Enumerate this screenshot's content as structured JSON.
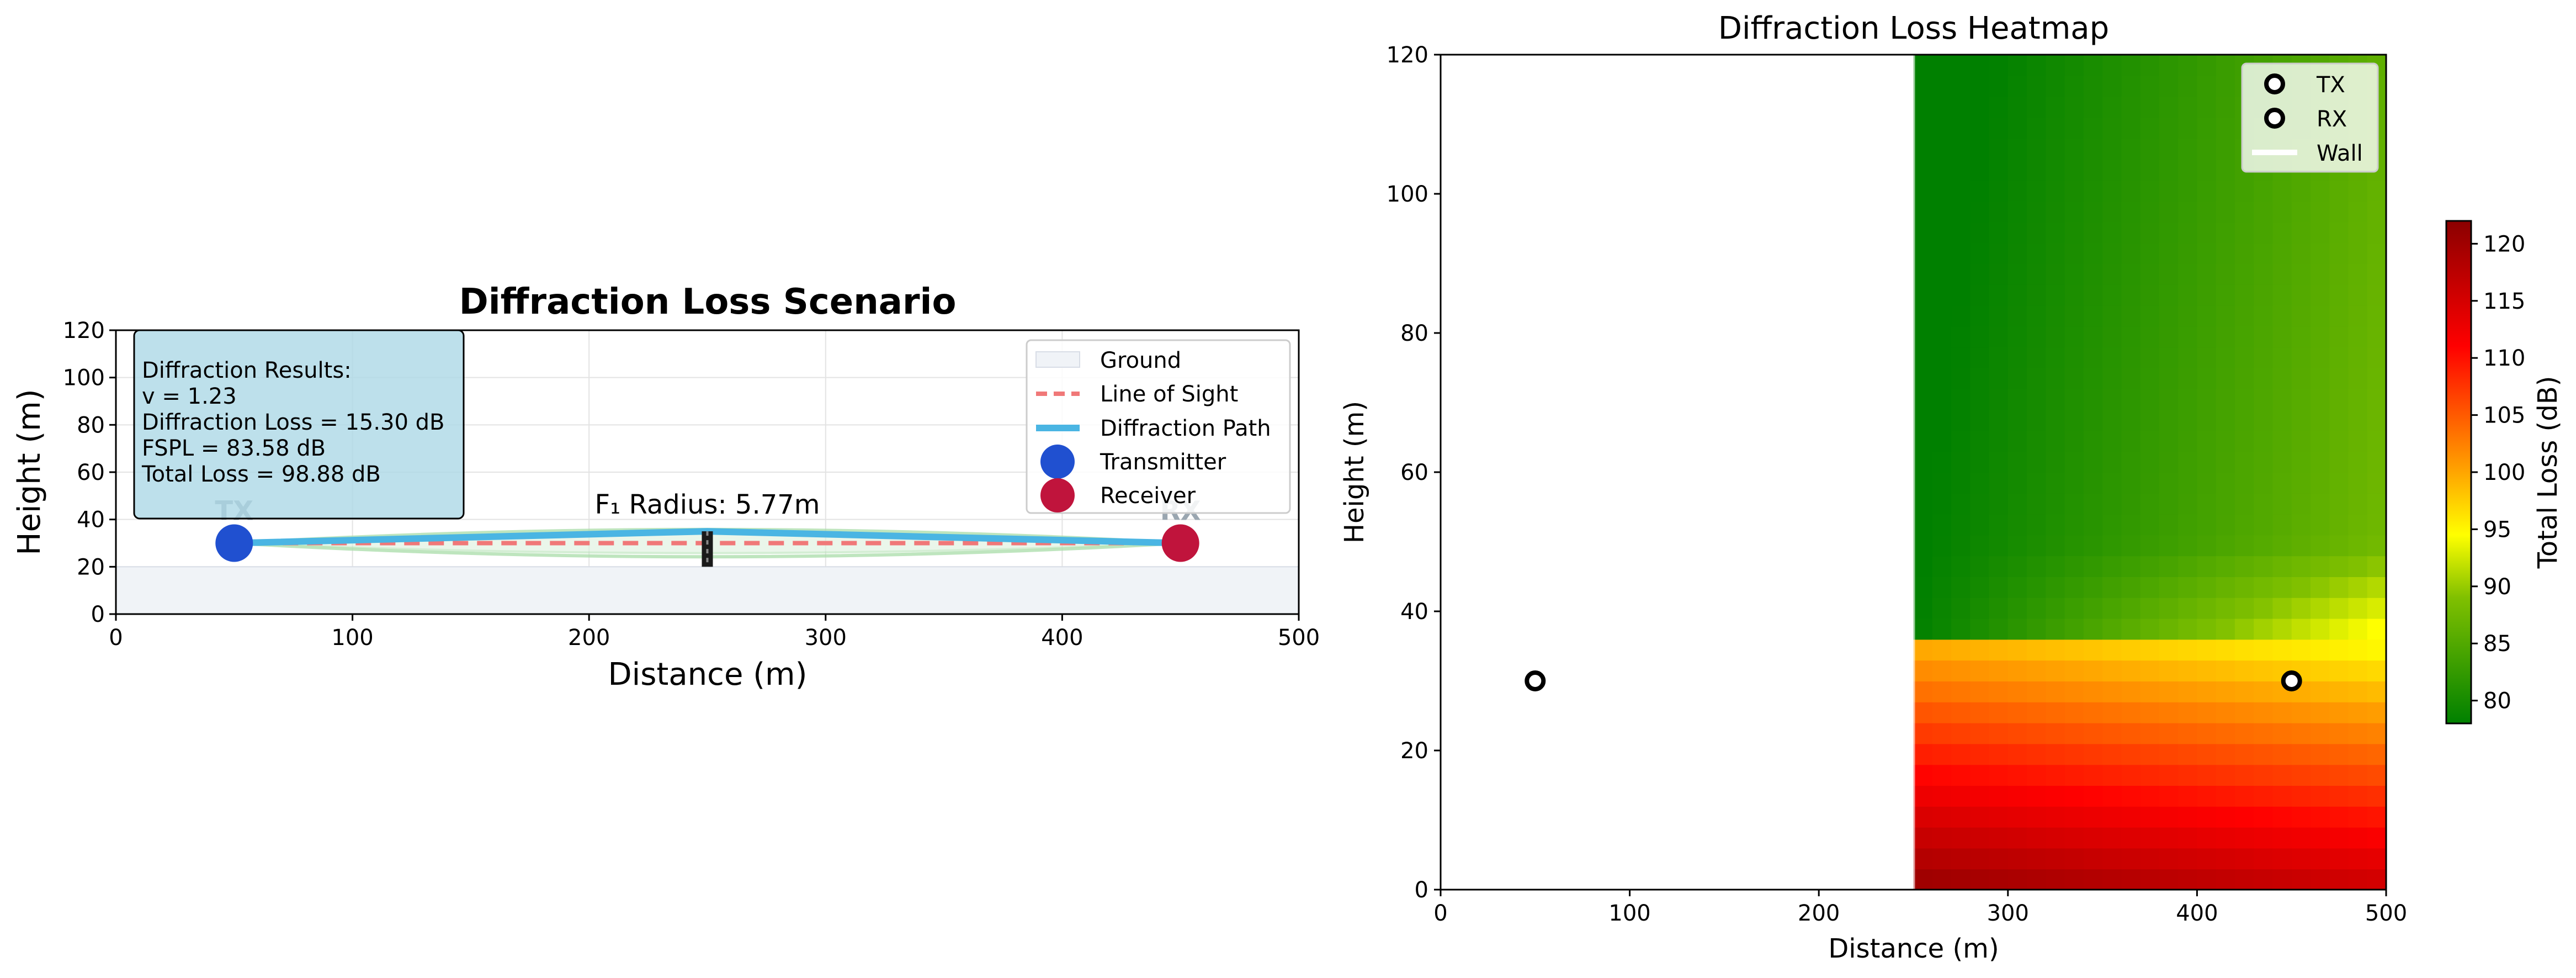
{
  "chart_data": [
    {
      "type": "line",
      "title": "Diffraction Loss Scenario",
      "xlabel": "Distance (m)",
      "ylabel": "Height (m)",
      "xlim": [
        0,
        500
      ],
      "ylim": [
        0,
        120
      ],
      "xticks": [
        0,
        100,
        200,
        300,
        400,
        500
      ],
      "yticks": [
        0,
        20,
        40,
        60,
        80,
        100,
        120
      ],
      "grid": true,
      "legend_position": "top-right",
      "ground_height": 20,
      "transmitter": {
        "x": 50,
        "y": 30,
        "label": "TX",
        "color": "#2050d0"
      },
      "receiver": {
        "x": 450,
        "y": 30,
        "label": "RX",
        "color": "#c0143c"
      },
      "obstacle": {
        "x": 250,
        "y_bottom": 20,
        "y_top": 35
      },
      "fresnel_radius_label": "F₁ Radius: 5.77m",
      "series": [
        {
          "name": "Ground",
          "color": "#f0f3f7"
        },
        {
          "name": "Line of Sight",
          "x": [
            50,
            450
          ],
          "y": [
            30,
            30
          ],
          "color": "#f07878"
        },
        {
          "name": "Diffraction Path",
          "x": [
            50,
            250,
            450
          ],
          "y": [
            30,
            35,
            30
          ],
          "color": "#4ab5e3"
        },
        {
          "name": "Transmitter",
          "color": "#2050d0"
        },
        {
          "name": "Receiver",
          "color": "#c0143c"
        }
      ],
      "results_box": {
        "title": "Diffraction Results:",
        "lines": [
          "v = 1.23",
          "Diffraction Loss = 15.30 dB",
          "FSPL = 83.58 dB",
          "Total Loss = 98.88 dB"
        ]
      }
    },
    {
      "type": "heatmap",
      "title": "Diffraction Loss Heatmap",
      "xlabel": "Distance (m)",
      "ylabel": "Height (m)",
      "xlim": [
        0,
        500
      ],
      "ylim": [
        0,
        120
      ],
      "xticks": [
        0,
        100,
        200,
        300,
        400,
        500
      ],
      "yticks": [
        0,
        20,
        40,
        60,
        80,
        100,
        120
      ],
      "wall_x": 250,
      "shadow_boundary_height": 36,
      "value_range": [
        78,
        122
      ],
      "colorbar": {
        "label": "Total Loss (dB)",
        "ticks": [
          80,
          85,
          90,
          95,
          100,
          105,
          110,
          115,
          120
        ]
      },
      "markers": [
        {
          "name": "TX",
          "x": 50,
          "y": 30
        },
        {
          "name": "RX",
          "x": 450,
          "y": 30
        }
      ],
      "legend": [
        "TX",
        "RX",
        "Wall"
      ],
      "legend_position": "top-right"
    }
  ]
}
